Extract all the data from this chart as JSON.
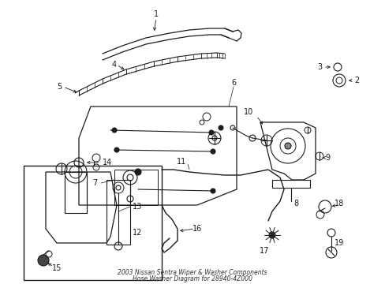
{
  "bg_color": "#ffffff",
  "line_color": "#1a1a1a",
  "label_color": "#1a1a1a",
  "fig_width": 4.89,
  "fig_height": 3.6,
  "dpi": 100,
  "title_line1": "2003 Nissan Sentra Wiper & Washer Components",
  "title_line2": "Hose Washer Diagram for 28940-4Z000"
}
